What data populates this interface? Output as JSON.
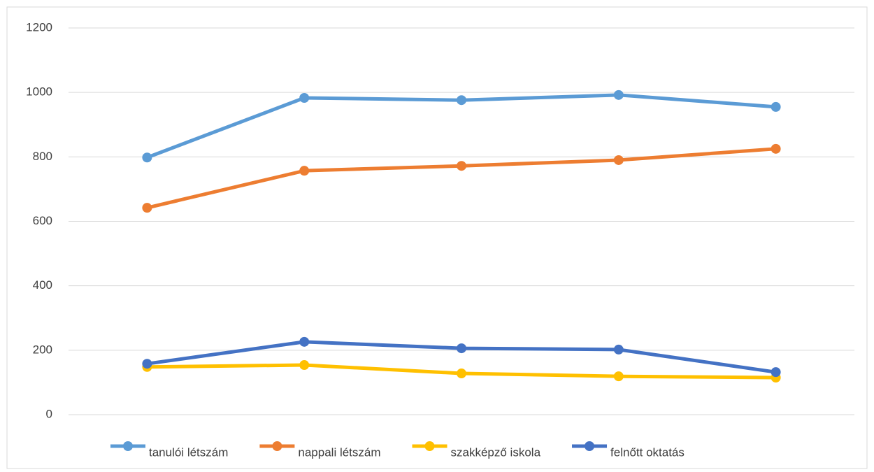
{
  "chart_data": {
    "type": "line",
    "categories": [
      null,
      null,
      null,
      null,
      null
    ],
    "series": [
      {
        "name": "tanulói létszám",
        "color": "#5b9bd5",
        "values": [
          798,
          983,
          976,
          992,
          955
        ]
      },
      {
        "name": "nappali létszám",
        "color": "#ed7d31",
        "values": [
          642,
          757,
          772,
          790,
          825
        ]
      },
      {
        "name": "szakképző iskola",
        "color": "#ffc000",
        "values": [
          148,
          154,
          128,
          119,
          115
        ]
      },
      {
        "name": "felnőtt oktatás",
        "color": "#4472c4",
        "values": [
          158,
          226,
          206,
          202,
          132
        ]
      }
    ],
    "ylim": [
      0,
      1200
    ],
    "yticks": [
      0,
      200,
      400,
      600,
      800,
      1000,
      1200
    ],
    "grid": true,
    "legend": "bottom"
  }
}
